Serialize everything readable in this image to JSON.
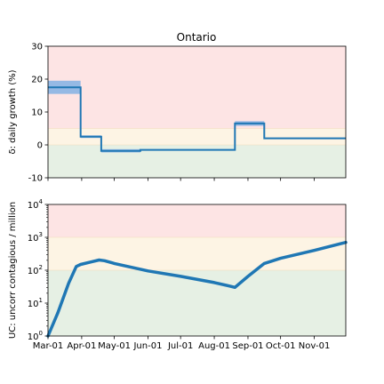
{
  "chart_data": [
    {
      "type": "line",
      "title": "Ontario",
      "ylabel": "δ: daily growth (%)",
      "ylim": [
        -10,
        30
      ],
      "yticks": [
        -10,
        0,
        10,
        20,
        30
      ],
      "zones": [
        {
          "from": -10,
          "to": 0,
          "color": "#e6f0e4"
        },
        {
          "from": 0,
          "to": 5,
          "color": "#fdf4e4"
        },
        {
          "from": 5,
          "to": 30,
          "color": "#fde4e4"
        }
      ],
      "band_color": "#8ab4e3",
      "line_color": "#1f77b4",
      "xlim": [
        "2020-03-01",
        "2020-11-30"
      ],
      "series": [
        {
          "x": [
            "2020-03-01",
            "2020-03-31",
            "2020-03-31",
            "2020-04-19",
            "2020-04-19",
            "2020-05-25",
            "2020-05-25",
            "2020-08-20",
            "2020-08-20",
            "2020-09-16",
            "2020-09-16",
            "2020-11-30"
          ],
          "y": [
            17.5,
            17.5,
            2.5,
            2.5,
            -1.8,
            -1.8,
            -1.5,
            -1.5,
            6.5,
            6.5,
            2.0,
            2.0
          ],
          "band": [
            {
              "from": "2020-03-01",
              "to": "2020-03-31",
              "low": 15.5,
              "high": 19.5
            },
            {
              "from": "2020-03-31",
              "to": "2020-04-19",
              "low": 2.1,
              "high": 2.9
            },
            {
              "from": "2020-04-19",
              "to": "2020-05-25",
              "low": -2.3,
              "high": -1.3
            },
            {
              "from": "2020-05-25",
              "to": "2020-08-20",
              "low": -1.7,
              "high": -1.3
            },
            {
              "from": "2020-08-20",
              "to": "2020-09-16",
              "low": 5.8,
              "high": 7.2
            },
            {
              "from": "2020-09-16",
              "to": "2020-11-30",
              "low": 1.8,
              "high": 2.2
            }
          ]
        }
      ]
    },
    {
      "type": "line",
      "ylabel": "UC: uncorr contagious / million",
      "yscale": "log",
      "ylim": [
        1,
        10000
      ],
      "yticks": [
        1,
        10,
        100,
        1000,
        10000
      ],
      "ytick_labels": [
        {
          "base": "10",
          "exp": "0"
        },
        {
          "base": "10",
          "exp": "1"
        },
        {
          "base": "10",
          "exp": "2"
        },
        {
          "base": "10",
          "exp": "3"
        },
        {
          "base": "10",
          "exp": "4"
        }
      ],
      "zones": [
        {
          "from": 1,
          "to": 100,
          "color": "#e6f0e4"
        },
        {
          "from": 100,
          "to": 1000,
          "color": "#fdf4e4"
        },
        {
          "from": 1000,
          "to": 10000,
          "color": "#fde4e4"
        }
      ],
      "line_color": "#1f77b4",
      "xlim": [
        "2020-03-01",
        "2020-11-30"
      ],
      "series": [
        {
          "x": [
            "2020-03-01",
            "2020-03-10",
            "2020-03-20",
            "2020-03-27",
            "2020-03-31",
            "2020-04-10",
            "2020-04-17",
            "2020-04-22",
            "2020-05-01",
            "2020-06-01",
            "2020-07-01",
            "2020-08-01",
            "2020-08-15",
            "2020-08-20",
            "2020-09-01",
            "2020-09-16",
            "2020-10-01",
            "2020-11-01",
            "2020-11-30"
          ],
          "y": [
            1,
            5,
            40,
            130,
            150,
            180,
            205,
            195,
            160,
            95,
            65,
            42,
            33,
            30,
            65,
            160,
            230,
            400,
            700
          ]
        }
      ]
    }
  ],
  "x_tick_labels": [
    "Mar-01",
    "Apr-01",
    "May-01",
    "Jun-01",
    "Jul-01",
    "Aug-01",
    "Sep-01",
    "Oct-01",
    "Nov-01"
  ],
  "x_tick_dates": [
    "2020-03-01",
    "2020-04-01",
    "2020-05-01",
    "2020-06-01",
    "2020-07-01",
    "2020-08-01",
    "2020-09-01",
    "2020-10-01",
    "2020-11-01"
  ]
}
